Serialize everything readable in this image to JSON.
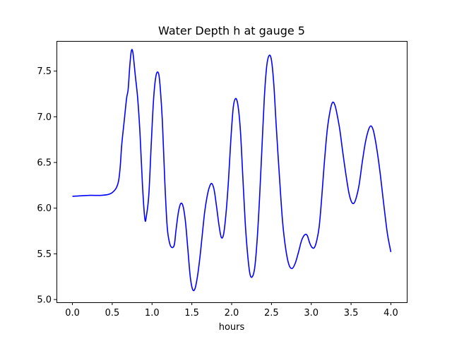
{
  "chart_data": {
    "type": "line",
    "title": "Water Depth h at gauge 5",
    "xlabel": "hours",
    "ylabel": "",
    "xlim": [
      -0.2,
      4.2
    ],
    "ylim": [
      4.97,
      7.83
    ],
    "xticks": [
      0.0,
      0.5,
      1.0,
      1.5,
      2.0,
      2.5,
      3.0,
      3.5,
      4.0
    ],
    "xtick_labels": [
      "0.0",
      "0.5",
      "1.0",
      "1.5",
      "2.0",
      "2.5",
      "3.0",
      "3.5",
      "4.0"
    ],
    "yticks": [
      5.0,
      5.5,
      6.0,
      6.5,
      7.0,
      7.5
    ],
    "ytick_labels": [
      "5.0",
      "5.5",
      "6.0",
      "6.5",
      "7.0",
      "7.5"
    ],
    "grid": false,
    "series": [
      {
        "color": "#0000ff",
        "x": [
          0.0,
          0.2,
          0.35,
          0.45,
          0.5,
          0.55,
          0.58,
          0.6,
          0.62,
          0.65,
          0.68,
          0.7,
          0.72,
          0.74,
          0.76,
          0.79,
          0.82,
          0.85,
          0.88,
          0.91,
          0.93,
          0.96,
          0.99,
          1.02,
          1.05,
          1.08,
          1.1,
          1.13,
          1.16,
          1.19,
          1.22,
          1.25,
          1.28,
          1.3,
          1.33,
          1.36,
          1.39,
          1.42,
          1.45,
          1.48,
          1.51,
          1.54,
          1.57,
          1.6,
          1.63,
          1.66,
          1.69,
          1.72,
          1.75,
          1.78,
          1.81,
          1.84,
          1.87,
          1.9,
          1.93,
          1.96,
          1.99,
          2.02,
          2.05,
          2.08,
          2.11,
          2.14,
          2.17,
          2.2,
          2.23,
          2.26,
          2.29,
          2.32,
          2.35,
          2.38,
          2.41,
          2.44,
          2.47,
          2.5,
          2.53,
          2.56,
          2.6,
          2.64,
          2.68,
          2.72,
          2.76,
          2.8,
          2.84,
          2.88,
          2.92,
          2.95,
          2.98,
          3.01,
          3.04,
          3.07,
          3.1,
          3.13,
          3.16,
          3.2,
          3.24,
          3.27,
          3.3,
          3.33,
          3.36,
          3.39,
          3.43,
          3.47,
          3.5,
          3.53,
          3.56,
          3.6,
          3.64,
          3.68,
          3.72,
          3.75,
          3.78,
          3.81,
          3.84,
          3.87,
          3.9,
          3.93,
          3.96,
          4.0
        ],
        "y": [
          6.13,
          6.14,
          6.14,
          6.15,
          6.17,
          6.22,
          6.3,
          6.45,
          6.7,
          6.95,
          7.2,
          7.3,
          7.55,
          7.72,
          7.7,
          7.45,
          7.2,
          6.8,
          6.25,
          5.88,
          5.92,
          6.15,
          6.7,
          7.2,
          7.45,
          7.48,
          7.35,
          6.95,
          6.3,
          5.8,
          5.62,
          5.57,
          5.6,
          5.75,
          5.95,
          6.05,
          6.02,
          5.85,
          5.55,
          5.25,
          5.11,
          5.12,
          5.25,
          5.45,
          5.7,
          5.95,
          6.12,
          6.23,
          6.27,
          6.2,
          6.02,
          5.82,
          5.68,
          5.72,
          5.95,
          6.3,
          6.75,
          7.1,
          7.2,
          7.12,
          6.85,
          6.35,
          5.85,
          5.5,
          5.28,
          5.25,
          5.35,
          5.65,
          6.1,
          6.65,
          7.2,
          7.55,
          7.67,
          7.62,
          7.35,
          6.9,
          6.35,
          5.85,
          5.55,
          5.38,
          5.34,
          5.4,
          5.52,
          5.65,
          5.71,
          5.7,
          5.62,
          5.57,
          5.57,
          5.65,
          5.8,
          6.1,
          6.45,
          6.85,
          7.08,
          7.16,
          7.12,
          7.0,
          6.85,
          6.65,
          6.4,
          6.18,
          6.08,
          6.05,
          6.1,
          6.25,
          6.5,
          6.72,
          6.86,
          6.9,
          6.85,
          6.72,
          6.55,
          6.35,
          6.12,
          5.9,
          5.7,
          5.52
        ]
      }
    ]
  }
}
